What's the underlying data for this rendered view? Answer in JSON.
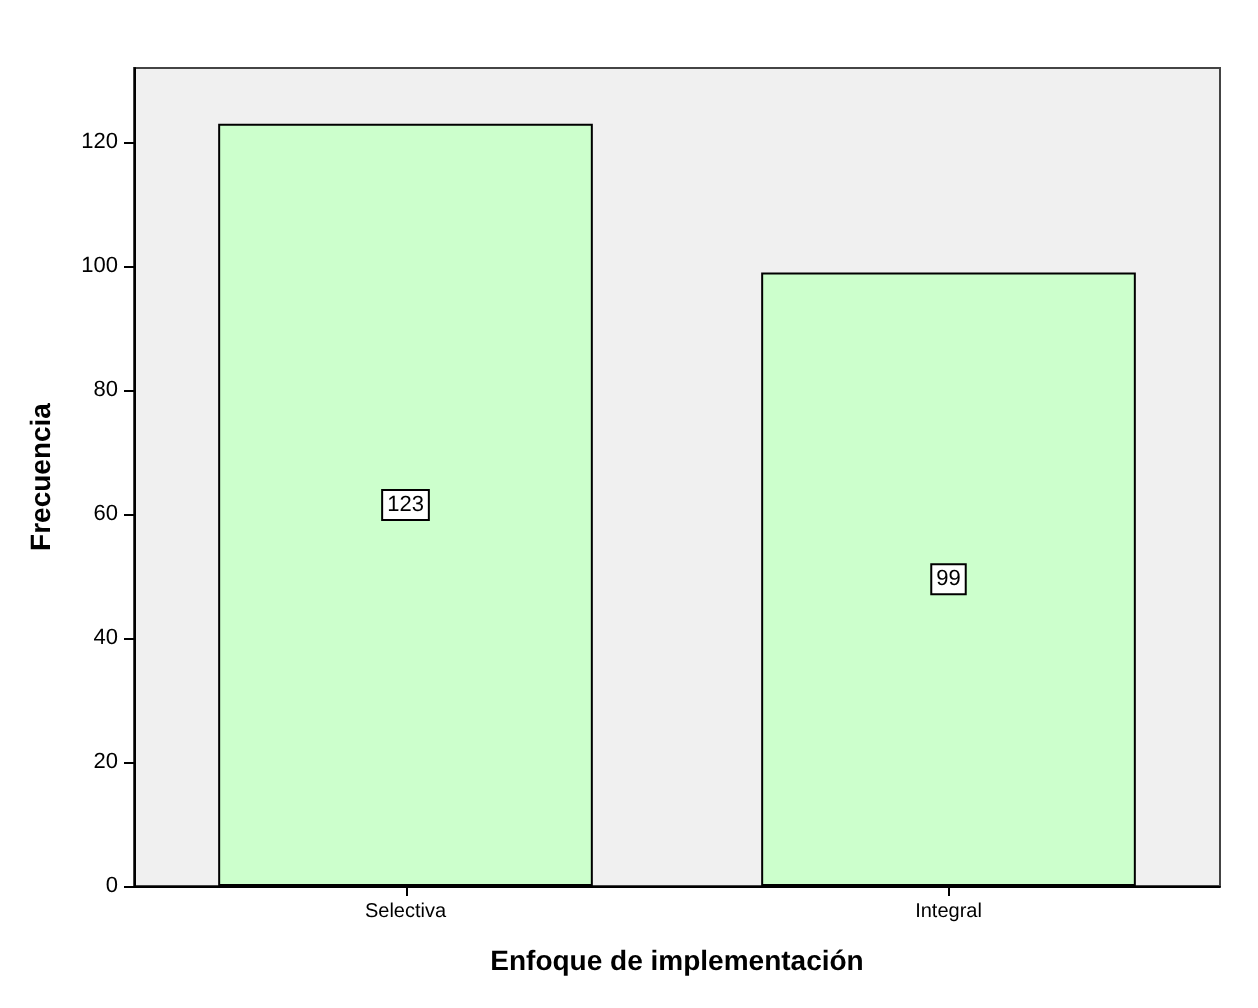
{
  "chart_data": {
    "type": "bar",
    "xlabel": "Enfoque de implementación",
    "ylabel": "Frecuencia",
    "categories": [
      "Selectiva",
      "Integral"
    ],
    "values": [
      123,
      99
    ],
    "color": "#ccffcc",
    "ylim": [
      0,
      132
    ],
    "yticks": [
      0,
      20,
      40,
      60,
      80,
      100,
      120
    ],
    "grid": false,
    "data_labels": true
  }
}
